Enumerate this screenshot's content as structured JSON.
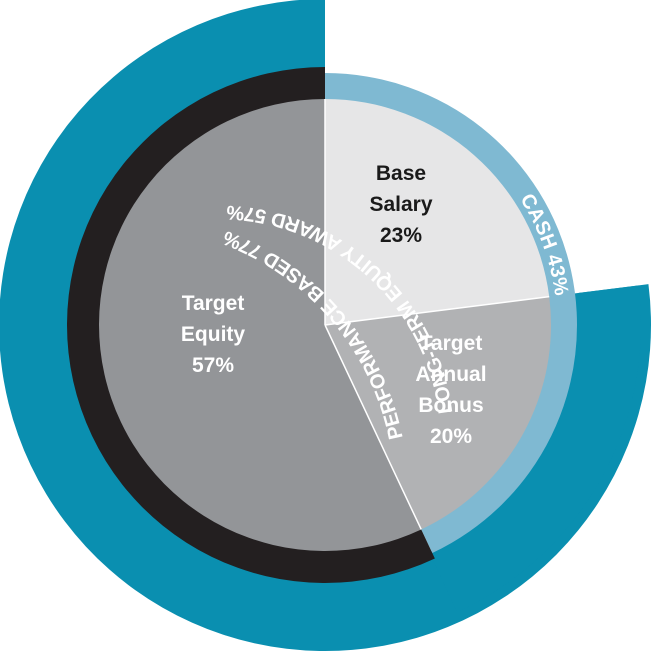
{
  "chart_data": {
    "type": "pie",
    "inner_pie": {
      "slices": [
        {
          "name_lines": [
            "Base",
            "Salary"
          ],
          "value": 23,
          "value_label": "23%",
          "color": "#e6e6e7",
          "label_color": "#1a1a1a"
        },
        {
          "name_lines": [
            "Target",
            "Annual",
            "Bonus"
          ],
          "value": 20,
          "value_label": "20%",
          "color": "#b1b2b4",
          "label_color": "#ffffff"
        },
        {
          "name_lines": [
            "Target",
            "Equity"
          ],
          "value": 57,
          "value_label": "57%",
          "color": "#939598",
          "label_color": "#ffffff"
        }
      ]
    },
    "rings": [
      {
        "label": "CASH 43%",
        "value": 43,
        "color": "#7fb9d2"
      },
      {
        "label": "LONG-TERM EQUITY AWARD 57%",
        "value": 57,
        "color": "#231f20"
      },
      {
        "label": "PERFORMANCE BASED 77%",
        "value": 77,
        "color": "#0a8fb0"
      }
    ]
  }
}
